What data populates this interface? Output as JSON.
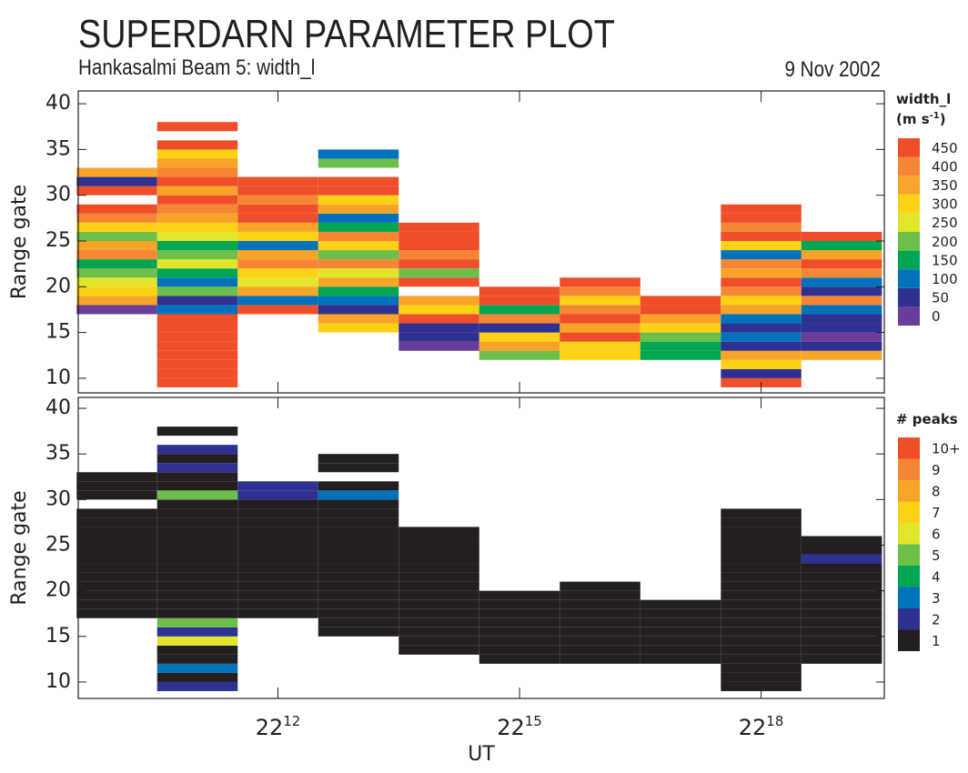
{
  "title": "SUPERDARN PARAMETER PLOT",
  "subtitle": "Hankasalmi Beam 5: width_l",
  "date": "9 Nov 2002",
  "chart_data": [
    {
      "type": "heatmap",
      "ylabel": "Range gate",
      "x": [
        10,
        11,
        12,
        13,
        14,
        15,
        16,
        17,
        18,
        19
      ],
      "gate_start": [
        17,
        9,
        17,
        15,
        13,
        12,
        12,
        12,
        9,
        12
      ],
      "values": [
        [
          0,
          350,
          300,
          250,
          200,
          150,
          400,
          350,
          200,
          300,
          400,
          450,
          null,
          450,
          50,
          350
        ],
        [
          450,
          450,
          450,
          450,
          450,
          450,
          450,
          450,
          100,
          50,
          200,
          100,
          150,
          250,
          200,
          150,
          250,
          300,
          350,
          400,
          450,
          350,
          450,
          400,
          350,
          300,
          450,
          null,
          450
        ],
        [
          450,
          100,
          350,
          250,
          300,
          400,
          350,
          100,
          300,
          350,
          450,
          450,
          400,
          450,
          450
        ],
        [
          300,
          350,
          50,
          100,
          150,
          350,
          250,
          400,
          200,
          300,
          400,
          150,
          100,
          350,
          300,
          450,
          450,
          null,
          200,
          100
        ],
        [
          0,
          50,
          50,
          450,
          300,
          350,
          null,
          450,
          200,
          450,
          400,
          450,
          450,
          450
        ],
        [
          200,
          350,
          300,
          50,
          400,
          150,
          450,
          450
        ],
        [
          300,
          300,
          450,
          350,
          450,
          400,
          300,
          400,
          450
        ],
        [
          150,
          150,
          200,
          300,
          350,
          450,
          450
        ],
        [
          450,
          50,
          300,
          350,
          50,
          100,
          50,
          100,
          350,
          300,
          400,
          450,
          350,
          400,
          100,
          300,
          450,
          400,
          450,
          450
        ],
        [
          350,
          50,
          0,
          50,
          50,
          100,
          400,
          50,
          100,
          400,
          450,
          350,
          150,
          450
        ]
      ],
      "xlim": [
        9.52,
        19.53
      ],
      "xticks": [
        12,
        15,
        18
      ],
      "ylim": [
        8.4,
        41.4
      ],
      "yticks": [
        10,
        15,
        20,
        25,
        30,
        35,
        40
      ],
      "colorbar": {
        "title": "width_l",
        "units": [
          "(m s",
          "-1",
          ")"
        ],
        "levels": [
          0,
          50,
          100,
          150,
          200,
          250,
          300,
          350,
          400,
          450
        ],
        "colors": [
          "#6a3d9a",
          "#2e3192",
          "#0072bc",
          "#00a651",
          "#6cbf4a",
          "#e2e62a",
          "#fcd116",
          "#f7a428",
          "#f58634",
          "#ef4e2b"
        ]
      }
    },
    {
      "type": "heatmap",
      "ylabel": "Range gate",
      "xlabel": "UT",
      "x": [
        10,
        11,
        12,
        13,
        14,
        15,
        16,
        17,
        18,
        19
      ],
      "gate_start": [
        17,
        9,
        17,
        15,
        13,
        12,
        12,
        12,
        9,
        12
      ],
      "values": [
        [
          1,
          1,
          1,
          1,
          1,
          1,
          1,
          1,
          1,
          1,
          1,
          1,
          null,
          1,
          1,
          1
        ],
        [
          2,
          1,
          3,
          1,
          1,
          6,
          2,
          5,
          1,
          1,
          1,
          1,
          1,
          1,
          1,
          1,
          1,
          1,
          1,
          1,
          1,
          5,
          1,
          1,
          2,
          1,
          2,
          null,
          1
        ],
        [
          1,
          1,
          1,
          1,
          1,
          1,
          1,
          1,
          1,
          1,
          1,
          1,
          1,
          2,
          2
        ],
        [
          1,
          1,
          1,
          1,
          1,
          1,
          1,
          1,
          1,
          1,
          1,
          1,
          1,
          1,
          1,
          3,
          1,
          null,
          1,
          1
        ],
        [
          1,
          1,
          1,
          1,
          1,
          1,
          1,
          1,
          1,
          1,
          1,
          1,
          1,
          1
        ],
        [
          1,
          1,
          1,
          1,
          1,
          1,
          1,
          1
        ],
        [
          1,
          1,
          1,
          1,
          1,
          1,
          1,
          1,
          1
        ],
        [
          1,
          1,
          1,
          1,
          1,
          1,
          1
        ],
        [
          1,
          1,
          1,
          1,
          1,
          1,
          1,
          1,
          1,
          1,
          1,
          1,
          1,
          1,
          1,
          1,
          1,
          1,
          1,
          1
        ],
        [
          1,
          1,
          1,
          1,
          1,
          1,
          1,
          1,
          1,
          1,
          1,
          2,
          1,
          1
        ]
      ],
      "xlim": [
        9.52,
        19.53
      ],
      "xticks": [
        {
          "value": 12,
          "label": "22"
        },
        {
          "value": 15,
          "label": "22"
        },
        {
          "value": 18,
          "label": "22"
        }
      ],
      "ylim": [
        8.2,
        41.2
      ],
      "yticks": [
        10,
        15,
        20,
        25,
        30,
        35,
        40
      ],
      "colorbar": {
        "title": "# peaks",
        "levels": [
          1,
          2,
          3,
          4,
          5,
          6,
          7,
          8,
          9,
          {
            "value": 10,
            "label": "10+"
          }
        ],
        "colors": [
          "#231f20",
          "#2e3192",
          "#0072bc",
          "#00a651",
          "#6cbf4a",
          "#e2e62a",
          "#fcd116",
          "#f7a428",
          "#f58634",
          "#ef4e2b"
        ]
      }
    }
  ]
}
